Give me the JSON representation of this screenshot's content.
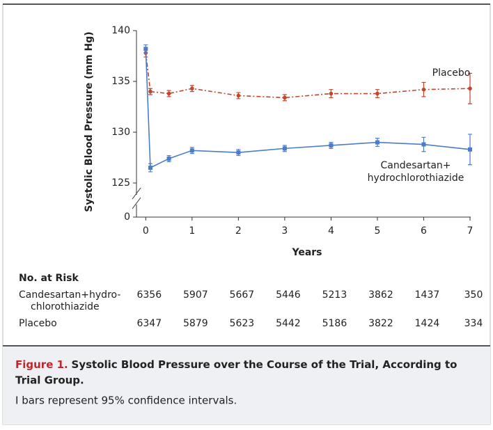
{
  "chart_data": {
    "type": "line",
    "y_label": "Systolic Blood Pressure (mm Hg)",
    "x_label": "Years",
    "xlim": [
      -0.2,
      7
    ],
    "xticks": [
      0,
      1,
      2,
      3,
      4,
      5,
      6,
      7
    ],
    "ylim": [
      125,
      140
    ],
    "yticks": [
      0,
      125,
      130,
      135,
      140
    ],
    "y_axis_break": true,
    "x": [
      0,
      0.1,
      0.5,
      1,
      2,
      3,
      4,
      5,
      6,
      7
    ],
    "series": [
      {
        "name_lines": [
          "Placebo"
        ],
        "color": "#c4432b",
        "dash": "dash-dot",
        "marker": "circle",
        "values": [
          137.8,
          134.0,
          133.8,
          134.3,
          133.6,
          133.4,
          133.8,
          133.8,
          134.2,
          134.3
        ],
        "errors": [
          0.4,
          0.3,
          0.3,
          0.3,
          0.3,
          0.3,
          0.4,
          0.4,
          0.7,
          1.5
        ]
      },
      {
        "name_lines": [
          "Candesartan+",
          "hydrochlorothiazide"
        ],
        "color": "#4a7cc9",
        "dash": "solid",
        "marker": "square",
        "values": [
          138.2,
          126.5,
          127.4,
          128.2,
          128.0,
          128.4,
          128.7,
          129.0,
          128.8,
          128.3
        ],
        "errors": [
          0.4,
          0.4,
          0.3,
          0.3,
          0.3,
          0.3,
          0.3,
          0.4,
          0.7,
          1.5
        ]
      }
    ]
  },
  "risk_table": {
    "title": "No. at Risk",
    "rows": [
      {
        "label_lines": [
          "Candesartan+hydro-",
          "chlorothiazide"
        ],
        "values": [
          6356,
          5907,
          5667,
          5446,
          5213,
          3862,
          1437,
          350
        ]
      },
      {
        "label_lines": [
          "Placebo"
        ],
        "values": [
          6347,
          5879,
          5623,
          5442,
          5186,
          3822,
          1424,
          334
        ]
      }
    ]
  },
  "caption": {
    "figure": "Figure 1.",
    "title": "Systolic Blood Pressure over the Course of the Trial, According to",
    "title_cont": "Trial Group.",
    "note": "I bars represent 95% confidence intervals."
  }
}
